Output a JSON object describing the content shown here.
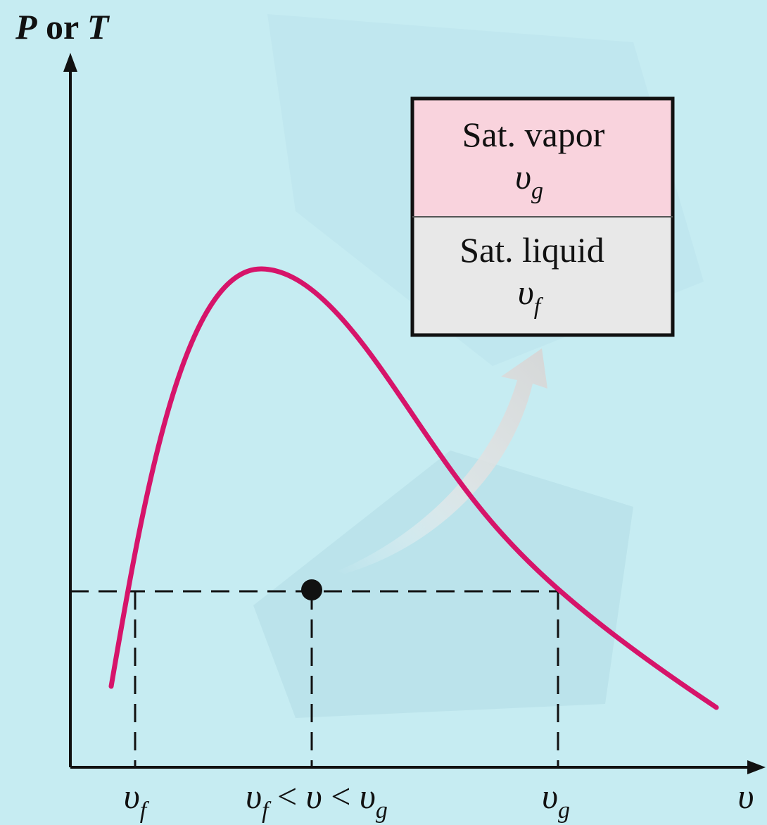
{
  "y_axis_label": [
    {
      "italic": "P"
    },
    {
      "text": " or "
    },
    {
      "italic": "T"
    }
  ],
  "x_axis_label": [
    {
      "italic": "υ"
    }
  ],
  "x_ticks": [
    [
      {
        "italic": "υ"
      },
      {
        "sub": "f"
      }
    ],
    [
      {
        "italic": "υ"
      },
      {
        "sub": "f"
      },
      {
        "text": " < "
      },
      {
        "italic": "υ"
      },
      {
        "text": " < "
      },
      {
        "italic": "υ"
      },
      {
        "sub": "g"
      }
    ],
    [
      {
        "italic": "υ"
      },
      {
        "sub": "g"
      }
    ]
  ],
  "box": {
    "vapor": {
      "title": "Sat. vapor",
      "symbol": [
        {
          "italic": "υ"
        },
        {
          "sub": "g"
        }
      ]
    },
    "liquid": {
      "title": "Sat. liquid",
      "symbol": [
        {
          "italic": "υ"
        },
        {
          "sub": "f"
        }
      ]
    }
  }
}
